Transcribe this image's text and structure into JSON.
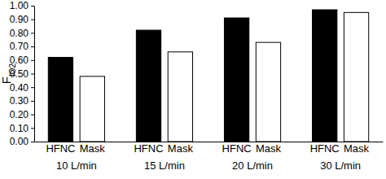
{
  "chart_data": {
    "type": "bar",
    "y_label": "FIO2",
    "categories": [
      "10 L/min",
      "15 L/min",
      "20 L/min",
      "30 L/min"
    ],
    "series": [
      {
        "name": "HFNC",
        "color": "#000000",
        "values": [
          0.62,
          0.82,
          0.91,
          0.97
        ]
      },
      {
        "name": "Mask",
        "color": "#ffffff",
        "values": [
          0.48,
          0.66,
          0.73,
          0.95
        ]
      }
    ],
    "ylim": [
      0,
      1
    ],
    "yticks": [
      {
        "value": 0,
        "label": "0.00"
      },
      {
        "value": 0.1,
        "label": "0.10"
      },
      {
        "value": 0.2,
        "label": "0.20"
      },
      {
        "value": 0.3,
        "label": "0.30"
      },
      {
        "value": 0.4,
        "label": "0.40"
      },
      {
        "value": 0.5,
        "label": "0.50"
      },
      {
        "value": 0.6,
        "label": "0.60"
      },
      {
        "value": 0.7,
        "label": "0.70"
      },
      {
        "value": 0.8,
        "label": "0.80"
      },
      {
        "value": 0.9,
        "label": "0.90"
      },
      {
        "value": 1,
        "label": "1.00"
      }
    ],
    "grid": false
  }
}
